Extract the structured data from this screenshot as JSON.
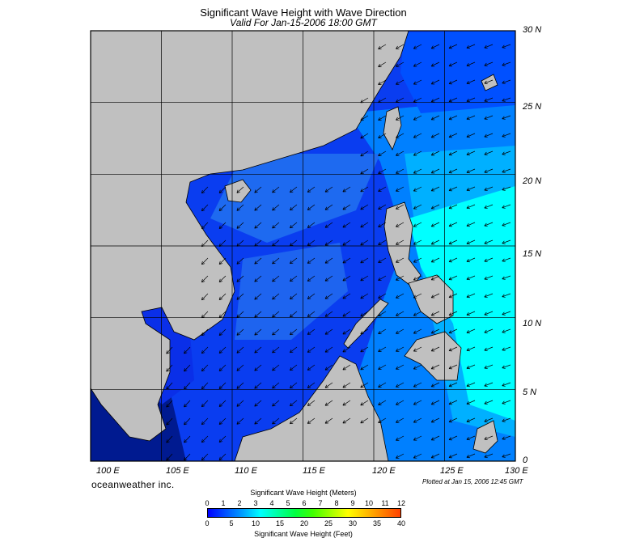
{
  "title": "Significant Wave Height with Wave Direction",
  "subtitle": "Valid For Jan-15-2006 18:00 GMT",
  "lat_labels": [
    "30 N",
    "25 N",
    "20 N",
    "15 N",
    "10 N",
    "5 N",
    "0"
  ],
  "lon_labels": [
    "100 E",
    "105 E",
    "110 E",
    "115 E",
    "120 E",
    "125 E",
    "130 E"
  ],
  "brand": "oceanweather inc.",
  "plotted": "Plotted at Jan 15, 2006 12:45 GMT",
  "legend": {
    "meters_title": "Significant Wave Height (Meters)",
    "feet_title": "Significant Wave Height (Feet)",
    "meters_ticks": [
      "0",
      "1",
      "2",
      "3",
      "4",
      "5",
      "6",
      "7",
      "8",
      "9",
      "10",
      "11",
      "12"
    ],
    "feet_ticks": [
      "0",
      "5",
      "10",
      "15",
      "20",
      "25",
      "30",
      "35",
      "40"
    ],
    "colors": [
      "#0000ff",
      "#0050ff",
      "#00a0ff",
      "#00ffff",
      "#00ffa0",
      "#00ff40",
      "#40ff00",
      "#a0ff00",
      "#ffff00",
      "#ffc000",
      "#ff8000",
      "#ff4000"
    ]
  },
  "map": {
    "extent": {
      "lon": [
        100,
        130
      ],
      "lat": [
        0,
        30
      ]
    },
    "land_color": "#c0c0c0",
    "grid_color": "#000000"
  }
}
